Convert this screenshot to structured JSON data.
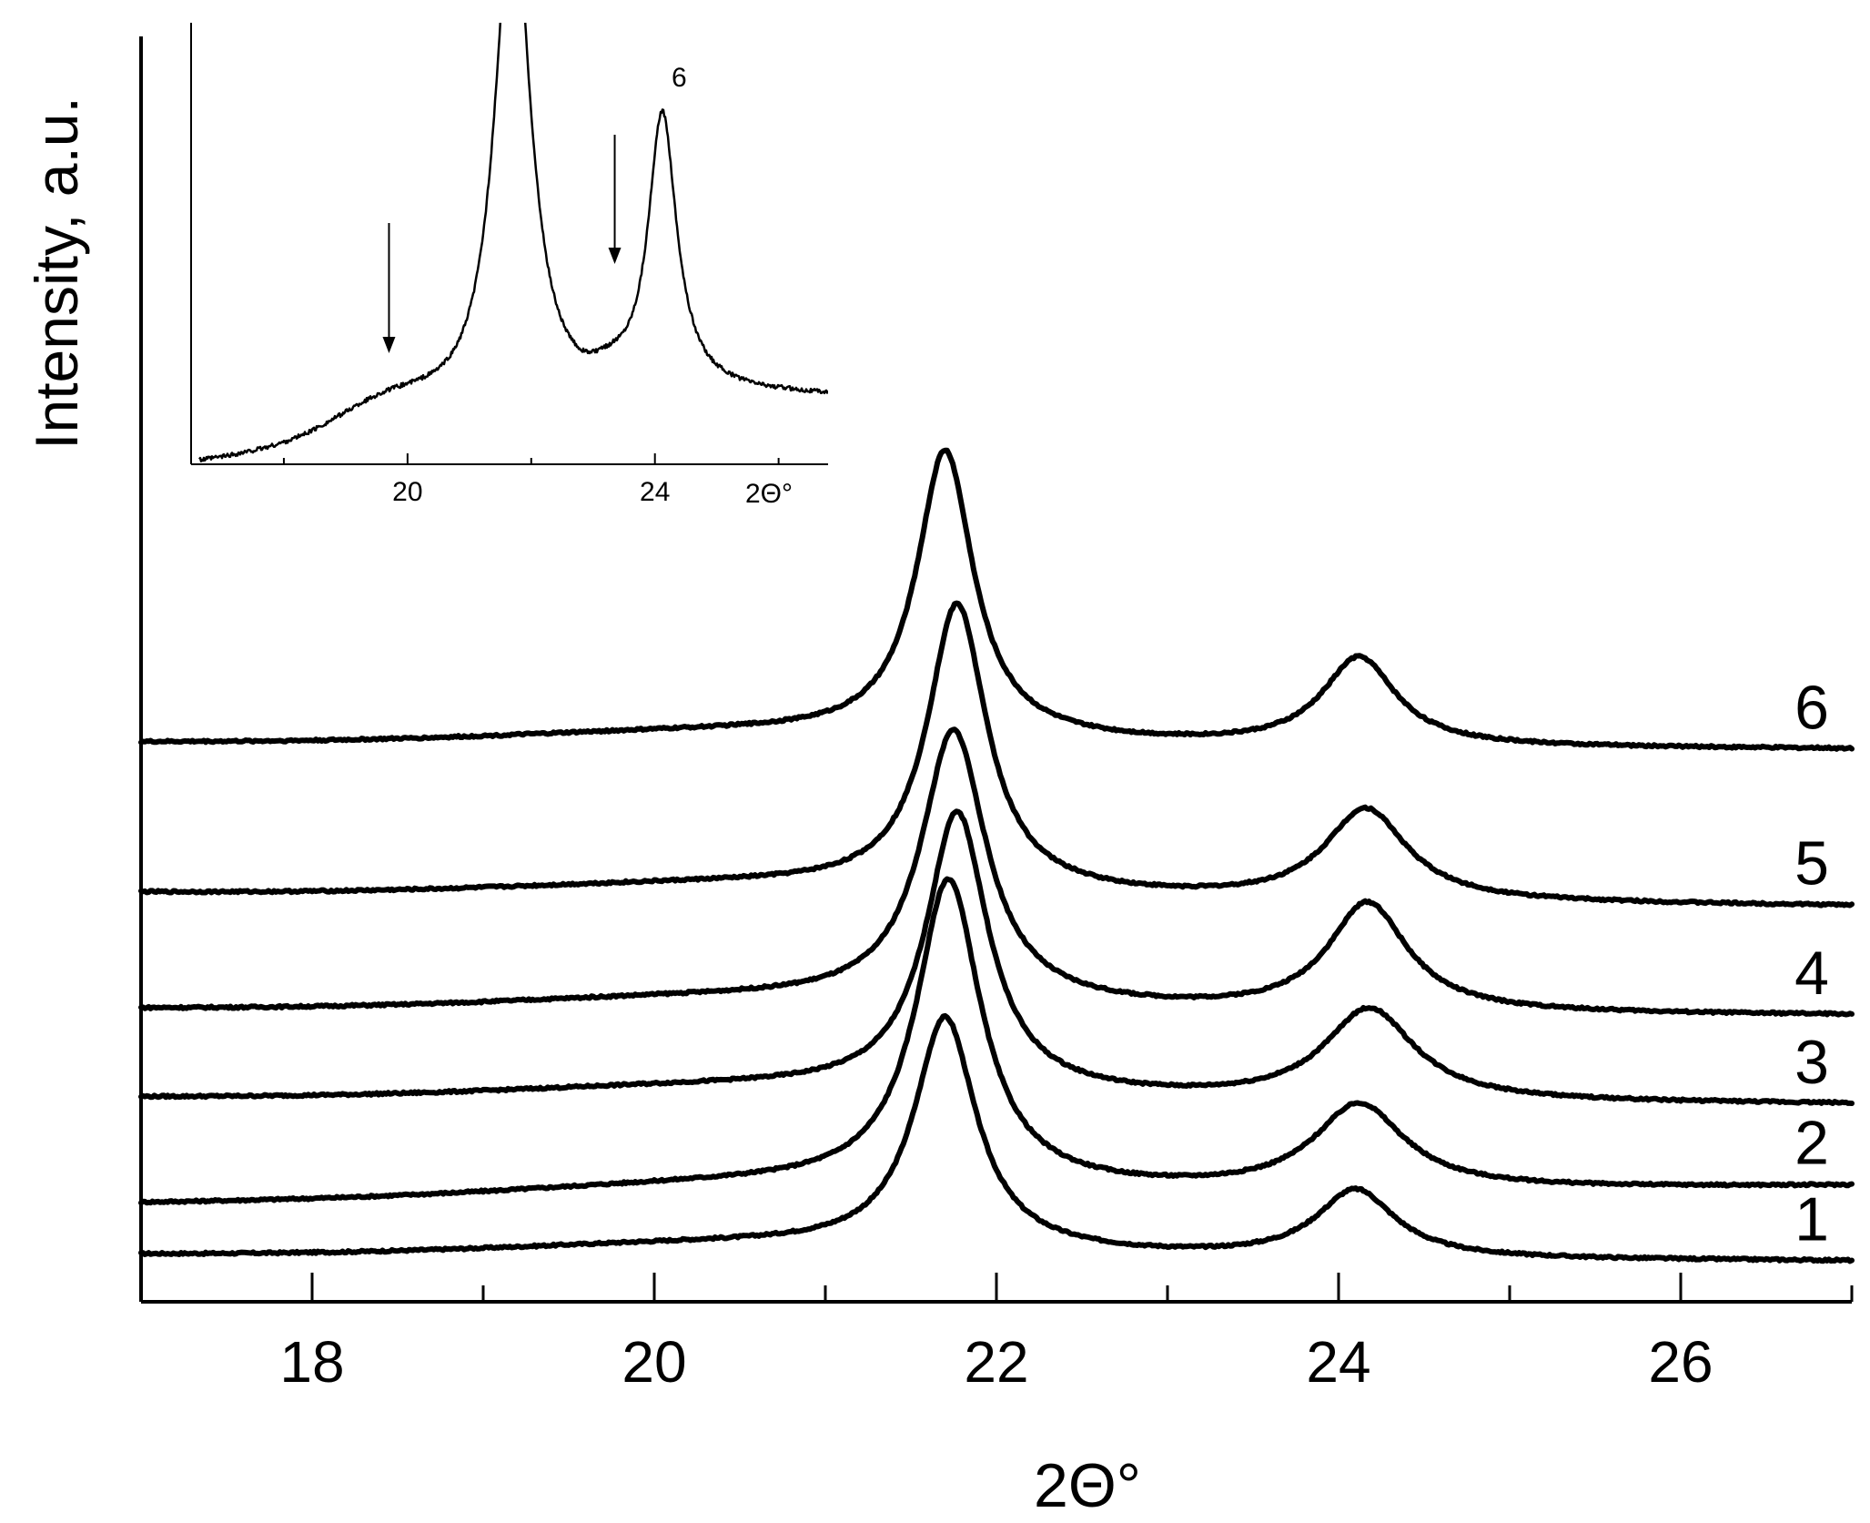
{
  "chart_data": {
    "type": "line",
    "xlabel": "2Θ°",
    "ylabel": "Intensity, a.u.",
    "xlim": [
      17.0,
      27.0
    ],
    "xticks": [
      18,
      20,
      22,
      24,
      26
    ],
    "minor_xtick_step": 1,
    "grid": false,
    "legend": "curve numbers at right end",
    "series": [
      {
        "name": "1",
        "baseline": 0.0,
        "bg_start": 0.0,
        "bg_end": -0.1,
        "peaks": [
          [
            21.7,
            3.4,
            0.22
          ],
          [
            24.1,
            1.0,
            0.28
          ]
        ]
      },
      {
        "name": "2",
        "baseline": 0.75,
        "bg_start": 0.0,
        "bg_end": 0.25,
        "peaks": [
          [
            21.72,
            4.5,
            0.23
          ],
          [
            24.12,
            1.25,
            0.32
          ]
        ]
      },
      {
        "name": "3",
        "baseline": 2.3,
        "bg_start": 0.0,
        "bg_end": -0.1,
        "peaks": [
          [
            21.77,
            4.1,
            0.22
          ],
          [
            24.18,
            1.35,
            0.32
          ]
        ]
      },
      {
        "name": "4",
        "baseline": 3.6,
        "bg_start": 0.0,
        "bg_end": -0.1,
        "peaks": [
          [
            21.75,
            4.0,
            0.23
          ],
          [
            24.17,
            1.6,
            0.28
          ]
        ]
      },
      {
        "name": "5",
        "baseline": 5.3,
        "bg_start": 0.0,
        "bg_end": -0.2,
        "peaks": [
          [
            21.77,
            4.2,
            0.21
          ],
          [
            24.16,
            1.35,
            0.29
          ]
        ]
      },
      {
        "name": "6",
        "baseline": 7.5,
        "bg_start": 0.0,
        "bg_end": -0.1,
        "peaks": [
          [
            21.7,
            4.2,
            0.2
          ],
          [
            24.12,
            1.3,
            0.26
          ]
        ]
      }
    ],
    "inset": {
      "xlabel": "2Θ°",
      "xlim": [
        16.5,
        26.8
      ],
      "xticks": [
        20,
        24
      ],
      "minor_xticks": [
        18,
        22,
        26
      ],
      "series_label": "6",
      "arrows_at": [
        19.7,
        23.35
      ]
    }
  }
}
